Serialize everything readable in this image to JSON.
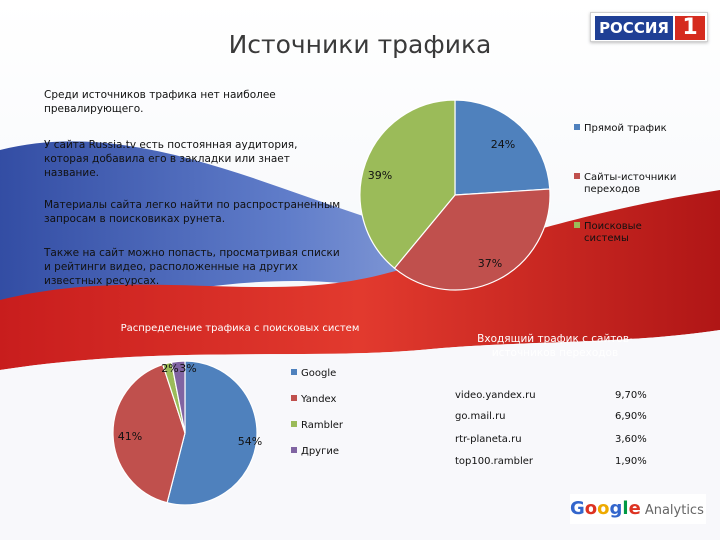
{
  "title": "Источники трафика",
  "logo": {
    "text": "РОССИЯ",
    "number": "1"
  },
  "paragraphs": [
    "Среди источников трафика нет наиболее превалирующего.",
    "У сайта Russia.tv есть постоянная аудитория, которая добавила его в закладки или знает название.",
    "Материалы сайта легко найти по распространенным запросам в поисковиках рунета.",
    "Также на сайт можно попасть, просматривая списки и рейтинги видео, расположенные на других известных ресурсах."
  ],
  "chart_data": [
    {
      "type": "pie",
      "title": "",
      "categories": [
        "Прямой трафик",
        "Сайты-источники переходов",
        "Поисковые системы"
      ],
      "values": [
        24,
        37,
        39
      ],
      "data_labels": [
        "24%",
        "37%",
        "39%"
      ],
      "colors": [
        "#4f81bd",
        "#c0504d",
        "#9bbb59"
      ],
      "legend_position": "right"
    },
    {
      "type": "pie",
      "title": "Распределение трафика с поисковых систем",
      "categories": [
        "Google",
        "Yandex",
        "Rambler",
        "Другие"
      ],
      "values": [
        54,
        41,
        2,
        3
      ],
      "data_labels": [
        "54%",
        "41%",
        "2%",
        "3%"
      ],
      "colors": [
        "#4f81bd",
        "#c0504d",
        "#9bbb59",
        "#8064a2"
      ],
      "legend_position": "right"
    },
    {
      "type": "table",
      "title": "Входящий трафик с сайтов-источников переходов",
      "rows": [
        {
          "site": "video.yandex.ru",
          "share": "9,70%"
        },
        {
          "site": "go.mail.ru",
          "share": "6,90%"
        },
        {
          "site": "rtr-planeta.ru",
          "share": "3,60%"
        },
        {
          "site": "top100.rambler",
          "share": "1,90%"
        }
      ]
    }
  ],
  "footer": {
    "brand": "Google",
    "product": "Analytics",
    "brand_colors": [
      "#3366cc",
      "#dd3322",
      "#eeaa00",
      "#3366cc",
      "#009944",
      "#dd3322"
    ]
  },
  "colors": {
    "flag_white": "#ffffff",
    "flag_blue": "#2e4aa8",
    "flag_red": "#d21c1c"
  }
}
